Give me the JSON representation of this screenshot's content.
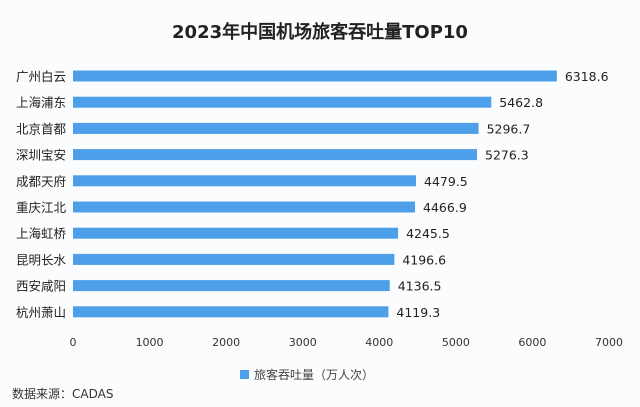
{
  "chart_data": {
    "type": "bar",
    "orientation": "horizontal",
    "title": "2023年中国机场旅客吞吐量TOP10",
    "categories": [
      "广州白云",
      "上海浦东",
      "北京首都",
      "深圳宝安",
      "成都天府",
      "重庆江北",
      "上海虹桥",
      "昆明长水",
      "西安咸阳",
      "杭州萧山"
    ],
    "series": [
      {
        "name": "旅客吞吐量（万人次）",
        "values": [
          6318.6,
          5462.8,
          5296.7,
          5276.3,
          4479.5,
          4466.9,
          4245.5,
          4196.6,
          4136.5,
          4119.3
        ]
      }
    ],
    "value_labels": [
      "6318.6",
      "5462.8",
      "5296.7",
      "5276.3",
      "4479.5",
      "4466.9",
      "4245.5",
      "4196.6",
      "4136.5",
      "4119.3"
    ],
    "xlim": [
      0,
      7000
    ],
    "xticks": [
      "0",
      "1000",
      "2000",
      "3000",
      "4000",
      "5000",
      "6000",
      "7000"
    ],
    "grid": false,
    "legend_position": "bottom",
    "color": "#4c9fe8"
  },
  "source": "数据来源：CADAS"
}
